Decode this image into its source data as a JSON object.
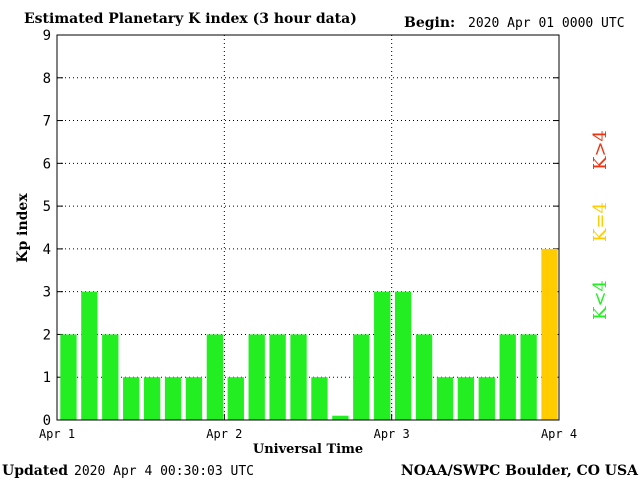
{
  "chart_data": {
    "type": "bar",
    "title": "Estimated Planetary K index (3 hour data)",
    "begin_label": "Begin:",
    "begin_value": "2020 Apr 01 0000 UTC",
    "ylabel": "Kp index",
    "xlabel": "Universal Time",
    "ylim": [
      0,
      9
    ],
    "y_ticks": [
      "0",
      "1",
      "2",
      "3",
      "4",
      "5",
      "6",
      "7",
      "8",
      "9"
    ],
    "x_ticks": [
      "Apr 1",
      "Apr 2",
      "Apr 3",
      "Apr 4"
    ],
    "grid": "dotted",
    "values": [
      2,
      3,
      2,
      1,
      1,
      1,
      1,
      2,
      1,
      2,
      2,
      2,
      1,
      0.1,
      2,
      3,
      3,
      2,
      1,
      1,
      1,
      2,
      2,
      4
    ],
    "legend": [
      {
        "label": "K<4",
        "color": "#22ee22"
      },
      {
        "label": "K=4",
        "color": "#ffcc00"
      },
      {
        "label": "K>4",
        "color": "#ee3311"
      }
    ],
    "colors": {
      "low": "#22ee22",
      "moderate": "#ffcc00",
      "high": "#ee3311"
    }
  },
  "footer": {
    "updated_label": "Updated",
    "updated_value": "2020 Apr  4 00:30:03 UTC",
    "credit": "NOAA/SWPC Boulder, CO USA"
  }
}
